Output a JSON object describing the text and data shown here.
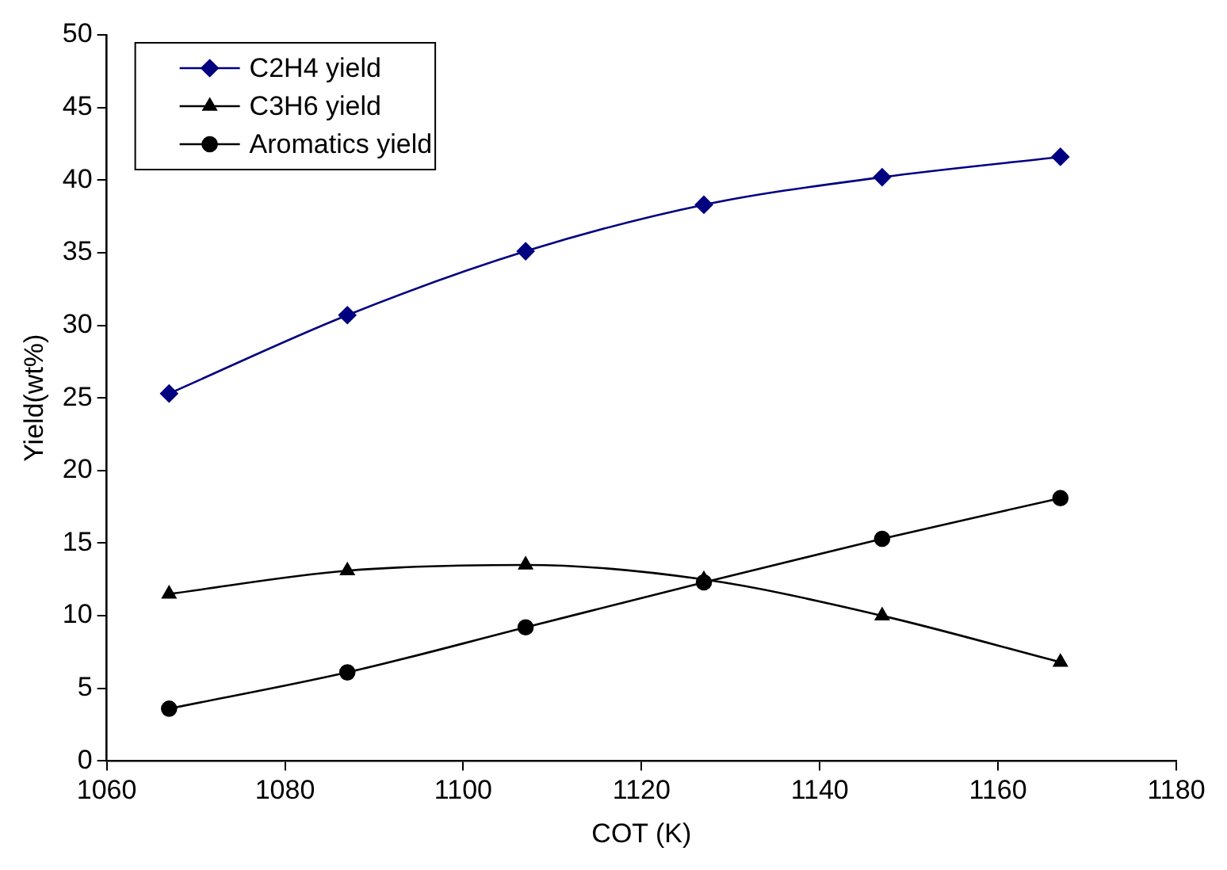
{
  "chart_data": {
    "type": "line",
    "xlabel": "COT (K)",
    "ylabel": "Yield(wt%)",
    "x": [
      1067,
      1087,
      1107,
      1127,
      1147,
      1167
    ],
    "xlim": [
      1060,
      1180
    ],
    "xticks": [
      1060,
      1080,
      1100,
      1120,
      1140,
      1160,
      1180
    ],
    "ylim": [
      0,
      50
    ],
    "yticks": [
      0,
      5,
      10,
      15,
      20,
      25,
      30,
      35,
      40,
      45,
      50
    ],
    "grid": false,
    "legend": "top left",
    "series": [
      {
        "name": "C2H4 yield",
        "color": "#000080",
        "marker": "diamond",
        "values": [
          25.3,
          30.7,
          35.1,
          38.3,
          40.2,
          41.6
        ]
      },
      {
        "name": "C3H6 yield",
        "color": "#000000",
        "marker": "triangle",
        "values": [
          11.5,
          13.1,
          13.5,
          12.5,
          10.0,
          6.8
        ]
      },
      {
        "name": "Aromatics yield",
        "color": "#000000",
        "marker": "circle",
        "values": [
          3.6,
          6.1,
          9.2,
          12.3,
          15.3,
          18.1
        ]
      }
    ]
  }
}
